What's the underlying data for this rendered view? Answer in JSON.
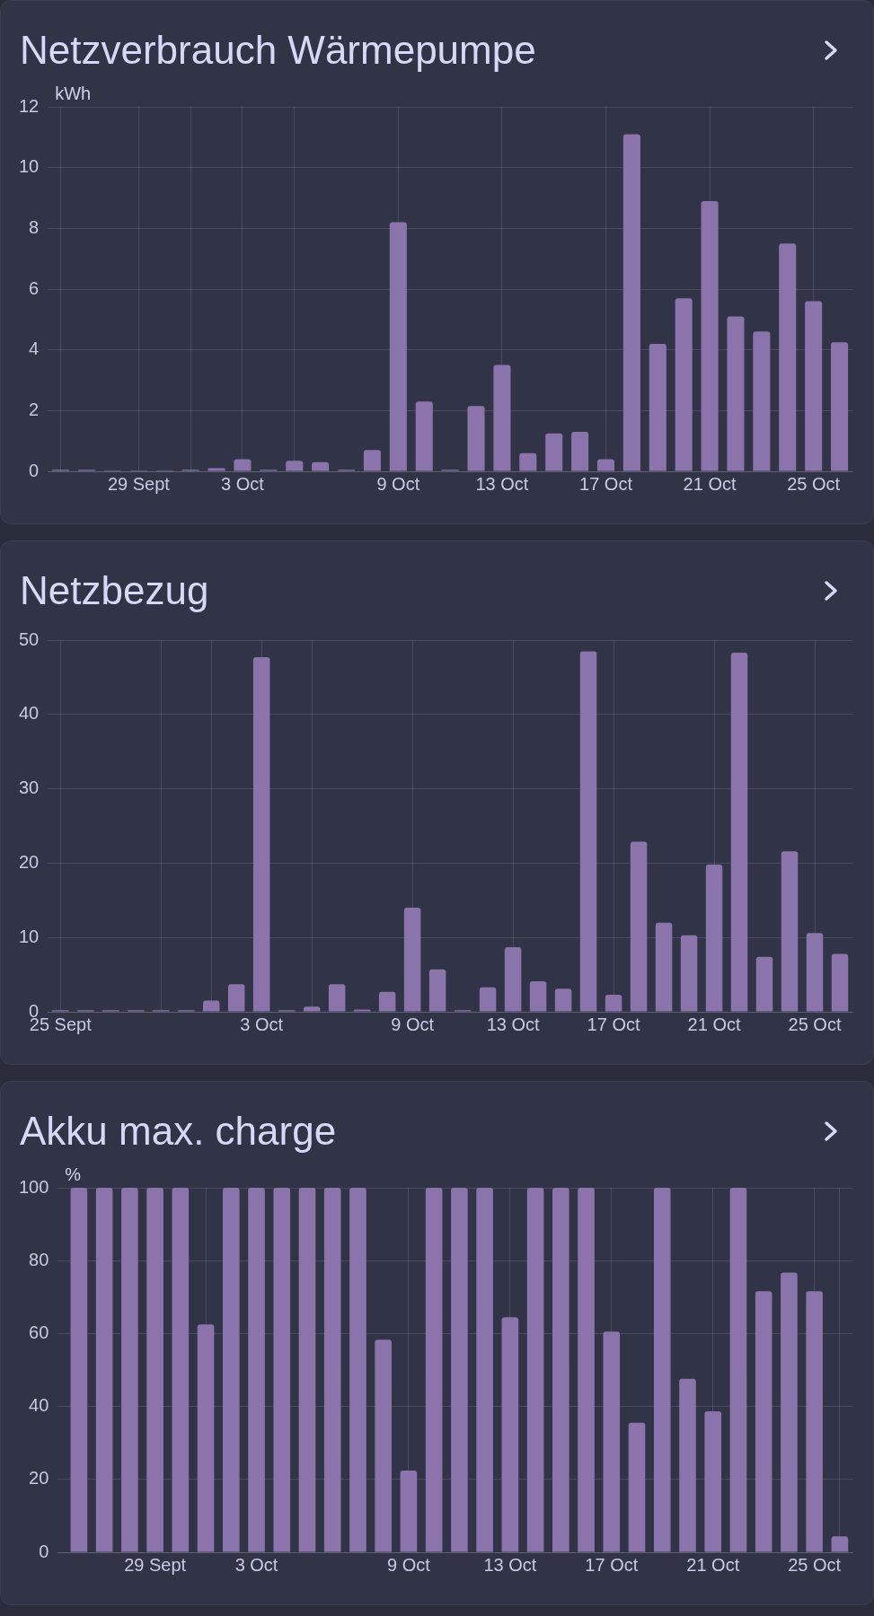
{
  "chart_data": [
    {
      "type": "bar",
      "title": "Netzverbrauch Wärmepumpe",
      "ylabel": "kWh",
      "color": "#8a74ab",
      "x": [
        "--09-26",
        "--09-27",
        "--09-28",
        "--09-29",
        "--09-30",
        "--10-01",
        "--10-02",
        "--10-03",
        "--10-04",
        "--10-05",
        "--10-06",
        "--10-07",
        "--10-08",
        "--10-09",
        "--10-10",
        "--10-11",
        "--10-12",
        "--10-13",
        "--10-14",
        "--10-15",
        "--10-16",
        "--10-17",
        "--10-18",
        "--10-19",
        "--10-20",
        "--10-21",
        "--10-22",
        "--10-23",
        "--10-24",
        "--10-25",
        "--10-26"
      ],
      "values": [
        0.05,
        0.05,
        0.03,
        0.03,
        0.03,
        0.05,
        0.1,
        0.4,
        0.05,
        0.35,
        0.3,
        0.05,
        0.7,
        8.2,
        2.3,
        0.05,
        2.15,
        3.5,
        0.6,
        1.25,
        1.3,
        0.4,
        11.1,
        4.2,
        5.7,
        8.9,
        5.1,
        4.6,
        7.5,
        5.6,
        4.25
      ],
      "xlim": [
        "--09-25T12:00",
        "--10-26T12:00"
      ],
      "xticks": [
        {
          "value": "--09-26",
          "label": null
        },
        {
          "value": "--09-29",
          "label": "29 Sept"
        },
        {
          "value": "--10-01",
          "label": null
        },
        {
          "value": "--10-03",
          "label": "3 Oct"
        },
        {
          "value": "--10-05",
          "label": null
        },
        {
          "value": "--10-09",
          "label": "9 Oct"
        },
        {
          "value": "--10-13",
          "label": "13 Oct"
        },
        {
          "value": "--10-17",
          "label": "17 Oct"
        },
        {
          "value": "--10-21",
          "label": "21 Oct"
        },
        {
          "value": "--10-25",
          "label": "25 Oct"
        }
      ],
      "ylim": [
        0,
        12
      ],
      "yticks": [
        0,
        2,
        4,
        6,
        8,
        10,
        12
      ],
      "grid": true
    },
    {
      "type": "bar",
      "title": "Netzbezug",
      "color": "#8a74ab",
      "x": [
        "--09-25",
        "--09-26",
        "--09-27",
        "--09-28",
        "--09-29",
        "--09-30",
        "--10-01",
        "--10-02",
        "--10-03",
        "--10-04",
        "--10-05",
        "--10-06",
        "--10-07",
        "--10-08",
        "--10-09",
        "--10-10",
        "--10-11",
        "--10-12",
        "--10-13",
        "--10-14",
        "--10-15",
        "--10-16",
        "--10-17",
        "--10-18",
        "--10-19",
        "--10-20",
        "--10-21",
        "--10-22",
        "--10-23",
        "--10-24",
        "--10-25",
        "--10-26"
      ],
      "values": [
        0.2,
        0.2,
        0.2,
        0.2,
        0.2,
        0.2,
        1.5,
        3.7,
        47.7,
        0.2,
        0.7,
        3.7,
        0.3,
        2.7,
        14,
        5.7,
        0.2,
        3.3,
        8.7,
        4.1,
        3.1,
        48.5,
        2.3,
        22.9,
        12,
        10.3,
        19.8,
        48.3,
        7.4,
        21.6,
        10.6,
        7.8
      ],
      "xlim": [
        "--09-24T12:00",
        "--10-26T12:00"
      ],
      "xticks": [
        {
          "value": "--09-25",
          "label": "25 Sept"
        },
        {
          "value": "--09-29",
          "label": null
        },
        {
          "value": "--10-01",
          "label": null
        },
        {
          "value": "--10-03",
          "label": "3 Oct"
        },
        {
          "value": "--10-05",
          "label": null
        },
        {
          "value": "--10-09",
          "label": "9 Oct"
        },
        {
          "value": "--10-13",
          "label": "13 Oct"
        },
        {
          "value": "--10-17",
          "label": "17 Oct"
        },
        {
          "value": "--10-21",
          "label": "21 Oct"
        },
        {
          "value": "--10-25",
          "label": "25 Oct"
        }
      ],
      "ylim": [
        0,
        50
      ],
      "yticks": [
        0,
        10,
        20,
        30,
        40,
        50
      ],
      "grid": true
    },
    {
      "type": "bar",
      "title": "Akku max. charge",
      "ylabel": "%",
      "color": "#8a74ab",
      "x": [
        "--09-26",
        "--09-27",
        "--09-28",
        "--09-29",
        "--09-30",
        "--10-01",
        "--10-02",
        "--10-03",
        "--10-04",
        "--10-05",
        "--10-06",
        "--10-07",
        "--10-08",
        "--10-09",
        "--10-10",
        "--10-11",
        "--10-12",
        "--10-13",
        "--10-14",
        "--10-15",
        "--10-16",
        "--10-17",
        "--10-18",
        "--10-19",
        "--10-20",
        "--10-21",
        "--10-22",
        "--10-23",
        "--10-24",
        "--10-25",
        "--10-26"
      ],
      "values": [
        100,
        100,
        100,
        100,
        100,
        62.5,
        100,
        100,
        100,
        100,
        100,
        100,
        58.3,
        22.4,
        100,
        100,
        100,
        64.5,
        100,
        100,
        100,
        60.5,
        35.5,
        100,
        47.6,
        38.7,
        100,
        71.6,
        76.7,
        71.6,
        4.4
      ],
      "xlim": [
        "--09-25T04:00",
        "--10-26T12:00"
      ],
      "xticks": [
        {
          "value": "--09-29",
          "label": "29 Sept"
        },
        {
          "value": "--10-01",
          "label": null
        },
        {
          "value": "--10-03",
          "label": "3 Oct"
        },
        {
          "value": "--10-09",
          "label": "9 Oct"
        },
        {
          "value": "--10-13",
          "label": "13 Oct"
        },
        {
          "value": "--10-17",
          "label": "17 Oct"
        },
        {
          "value": "--10-21",
          "label": "21 Oct"
        },
        {
          "value": "--10-25",
          "label": "25 Oct"
        },
        {
          "value": "--10-26",
          "label": null
        }
      ],
      "ylim": [
        0,
        100
      ],
      "yticks": [
        0,
        20,
        40,
        60,
        80,
        100
      ],
      "grid": true
    }
  ]
}
